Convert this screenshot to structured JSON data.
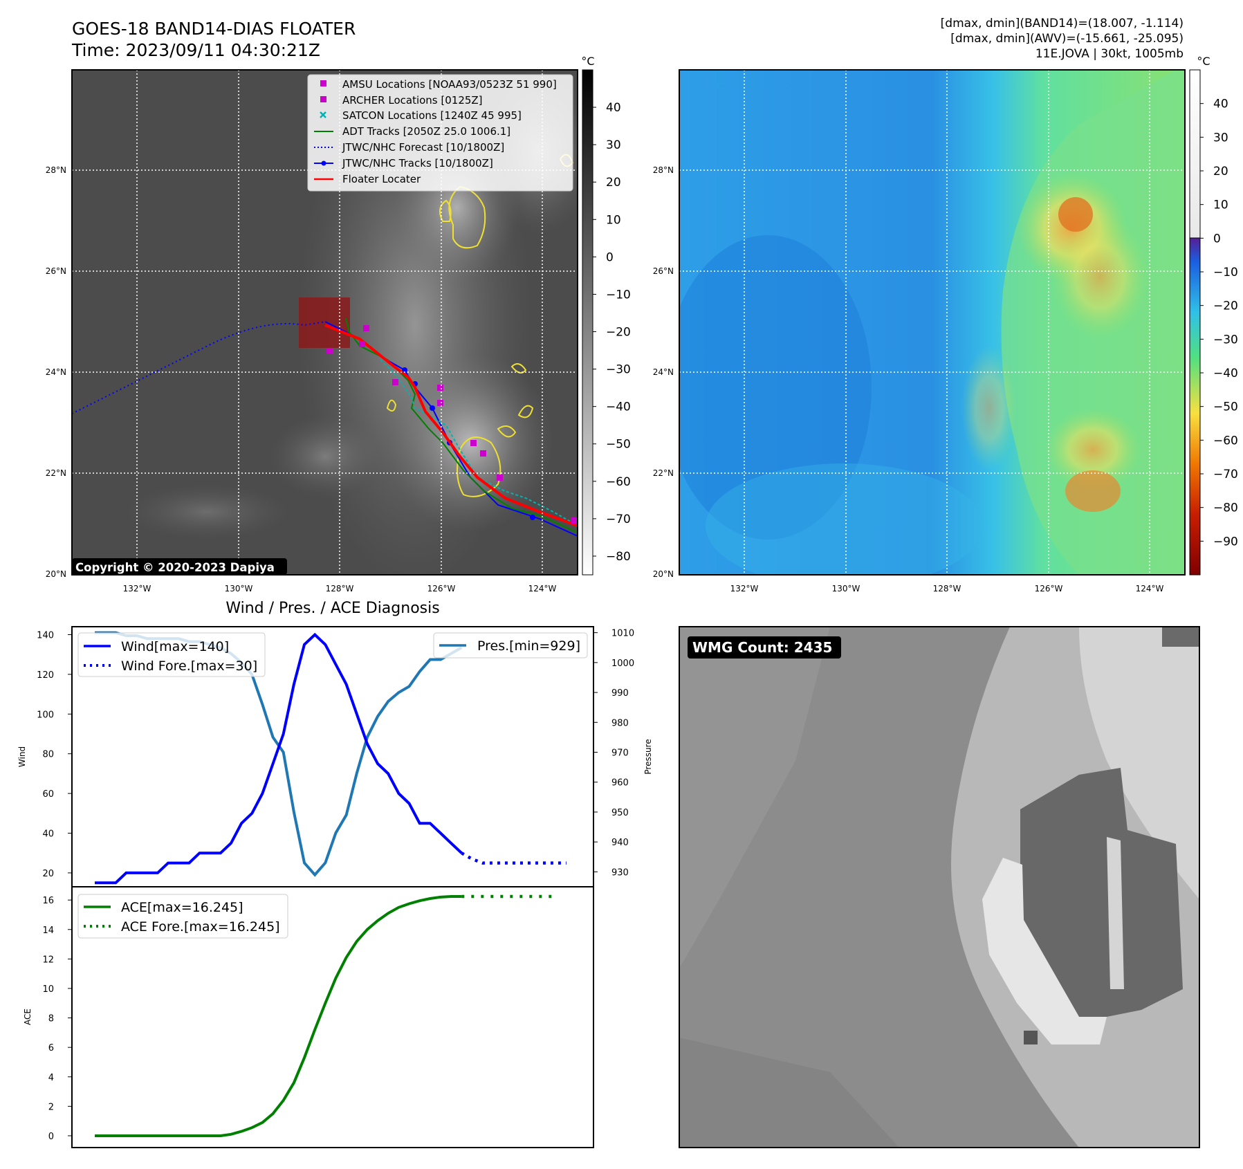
{
  "figure": {
    "title_line1": "GOES-18 BAND14-DIAS FLOATER",
    "title_line2": "Time: 2023/09/11 04:30:21Z",
    "info_line1": "[dmax, dmin](BAND14)=(18.007, -1.114)",
    "info_line2": "[dmax, dmin](AWV)=(-15.661, -25.095)",
    "info_line3": "11E.JOVA | 30kt, 1005mb",
    "copyright": "Copyright © 2020-2023 Dapiya",
    "wmg_label": "WMG Count: 2435",
    "diagnosis_title": "Wind / Pres. / ACE Diagnosis"
  },
  "map_axes": {
    "lat_ticks": [
      "28°N",
      "26°N",
      "24°N",
      "22°N",
      "20°N"
    ],
    "lon_ticks": [
      "132°W",
      "130°W",
      "128°W",
      "126°W",
      "124°W"
    ],
    "lat_range": [
      20,
      30
    ],
    "lon_range": [
      -133.3,
      -123.3
    ],
    "grid": "dotted white"
  },
  "colorbars": {
    "unit": "°C",
    "band14_ticks": [
      "40",
      "30",
      "20",
      "10",
      "0",
      "−10",
      "−20",
      "−30",
      "−40",
      "−50",
      "−60",
      "−70",
      "−80"
    ],
    "band14_range": [
      -85,
      50
    ],
    "awv_ticks": [
      "40",
      "30",
      "20",
      "10",
      "0",
      "−10",
      "−20",
      "−30",
      "−40",
      "−50",
      "−60",
      "−70",
      "−80",
      "−90"
    ],
    "awv_range": [
      -100,
      50
    ]
  },
  "legend_map": [
    {
      "label": "AMSU Locations [NOAA93/0523Z 51 990]",
      "color": "#cc00cc",
      "marker": "square"
    },
    {
      "label": "ARCHER Locations [0125Z]",
      "color": "#cc00cc",
      "marker": "square"
    },
    {
      "label": "SATCON Locations [1240Z 45 995]",
      "color": "#00b3b3",
      "marker": "x"
    },
    {
      "label": "ADT Tracks [2050Z 25.0 1006.1]",
      "color": "#008000",
      "marker": "line"
    },
    {
      "label": "JTWC/NHC Forecast [10/1800Z]",
      "color": "#0000ff",
      "marker": "dotted"
    },
    {
      "label": "JTWC/NHC Tracks [10/1800Z]",
      "color": "#0000ff",
      "marker": "line-dot"
    },
    {
      "label": "Floater Locater",
      "color": "#ff0000",
      "marker": "line"
    }
  ],
  "chart_data": [
    {
      "type": "line",
      "panel": "wind-pressure",
      "ylabel": "Wind",
      "y2label": "Pressure",
      "ylim": [
        13,
        144
      ],
      "y2lim": [
        925,
        1012
      ],
      "yticks": [
        20,
        40,
        60,
        80,
        100,
        120,
        140
      ],
      "y2ticks": [
        930,
        940,
        950,
        960,
        970,
        980,
        990,
        1000,
        1010
      ],
      "legend": [
        "top-left",
        "top-right"
      ],
      "series": [
        {
          "name": "Wind[max=140]",
          "color": "#0000ff",
          "style": "solid",
          "axis": "left",
          "values": [
            15,
            15,
            15,
            20,
            20,
            20,
            20,
            25,
            25,
            25,
            30,
            30,
            30,
            35,
            45,
            50,
            60,
            75,
            90,
            115,
            135,
            140,
            135,
            125,
            115,
            100,
            85,
            75,
            70,
            60,
            55,
            45,
            45,
            40,
            35,
            30
          ]
        },
        {
          "name": "Wind Fore.[max=30]",
          "color": "#0000ff",
          "style": "dotted",
          "axis": "left",
          "values": [
            30,
            27,
            25,
            25,
            25,
            25,
            25,
            25,
            25,
            25,
            25
          ]
        },
        {
          "name": "Pres.[min=929]",
          "color": "#1f77b4",
          "style": "solid",
          "axis": "right",
          "values": [
            1010,
            1010,
            1010,
            1009,
            1009,
            1008,
            1008,
            1008,
            1008,
            1007,
            1007,
            1006,
            1005,
            1003,
            1000,
            996,
            986,
            975,
            970,
            950,
            933,
            929,
            933,
            943,
            949,
            963,
            975,
            982,
            987,
            990,
            992,
            997,
            1001,
            1001,
            1003,
            1005
          ]
        }
      ]
    },
    {
      "type": "line",
      "panel": "ace",
      "ylabel": "ACE",
      "ylim": [
        -0.8,
        16.9
      ],
      "yticks": [
        0,
        2,
        4,
        6,
        8,
        10,
        12,
        14,
        16
      ],
      "legend": "top-left",
      "series": [
        {
          "name": "ACE[max=16.245]",
          "color": "#008000",
          "style": "solid",
          "values": [
            0,
            0,
            0,
            0,
            0,
            0,
            0,
            0,
            0,
            0,
            0,
            0,
            0,
            0.1,
            0.3,
            0.55,
            0.9,
            1.5,
            2.4,
            3.6,
            5.3,
            7.2,
            9.0,
            10.7,
            12.1,
            13.2,
            14.0,
            14.6,
            15.1,
            15.5,
            15.75,
            15.95,
            16.1,
            16.2,
            16.245,
            16.245
          ]
        },
        {
          "name": "ACE Fore.[max=16.245]",
          "color": "#008000",
          "style": "dotted",
          "values": [
            16.245,
            16.245,
            16.245,
            16.245,
            16.245,
            16.245,
            16.245,
            16.245,
            16.245,
            16.245
          ]
        }
      ]
    }
  ]
}
